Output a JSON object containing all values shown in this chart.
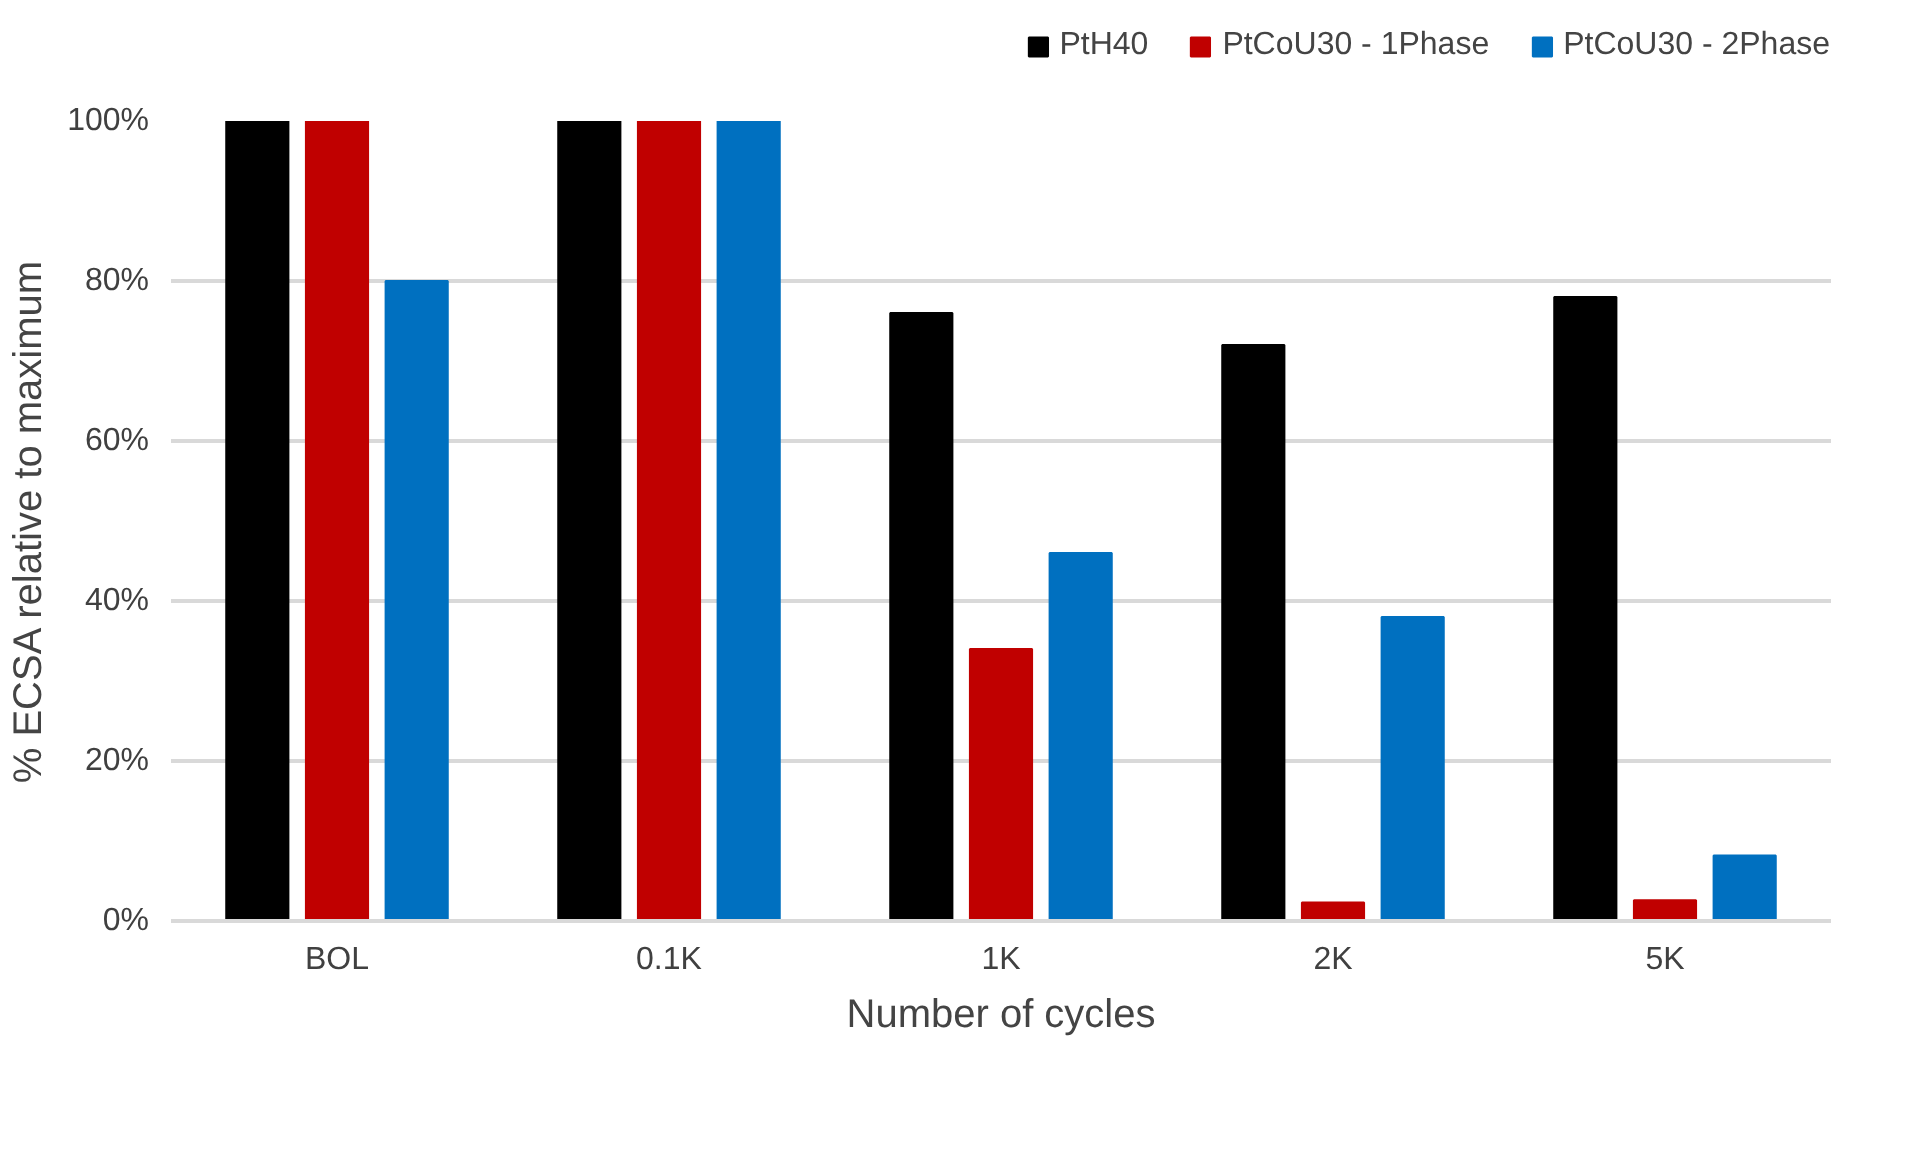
{
  "chart_data": {
    "type": "bar",
    "xlabel": "Number of cycles",
    "ylabel": "% ECSA relative to maximum",
    "categories": [
      "BOL",
      "0.1K",
      "1K",
      "2K",
      "5K"
    ],
    "series": [
      {
        "name": "PtH40",
        "color": "#000000",
        "values": [
          100,
          100,
          76,
          72,
          78
        ]
      },
      {
        "name": "PtCoU30 - 1Phase",
        "color": "#c00000",
        "values": [
          100,
          100,
          34,
          2.3,
          2.6
        ]
      },
      {
        "name": "PtCoU30 - 2Phase",
        "color": "#0070c0",
        "values": [
          80,
          100,
          46,
          38,
          8.2
        ]
      }
    ],
    "ylim": [
      0,
      100
    ],
    "yticks": [
      {
        "value": 0,
        "label": "0%"
      },
      {
        "value": 20,
        "label": "20%"
      },
      {
        "value": 40,
        "label": "40%"
      },
      {
        "value": 60,
        "label": "60%"
      },
      {
        "value": 80,
        "label": "80%"
      },
      {
        "value": 100,
        "label": "100%"
      }
    ],
    "grid": "y",
    "legend": "top right"
  }
}
